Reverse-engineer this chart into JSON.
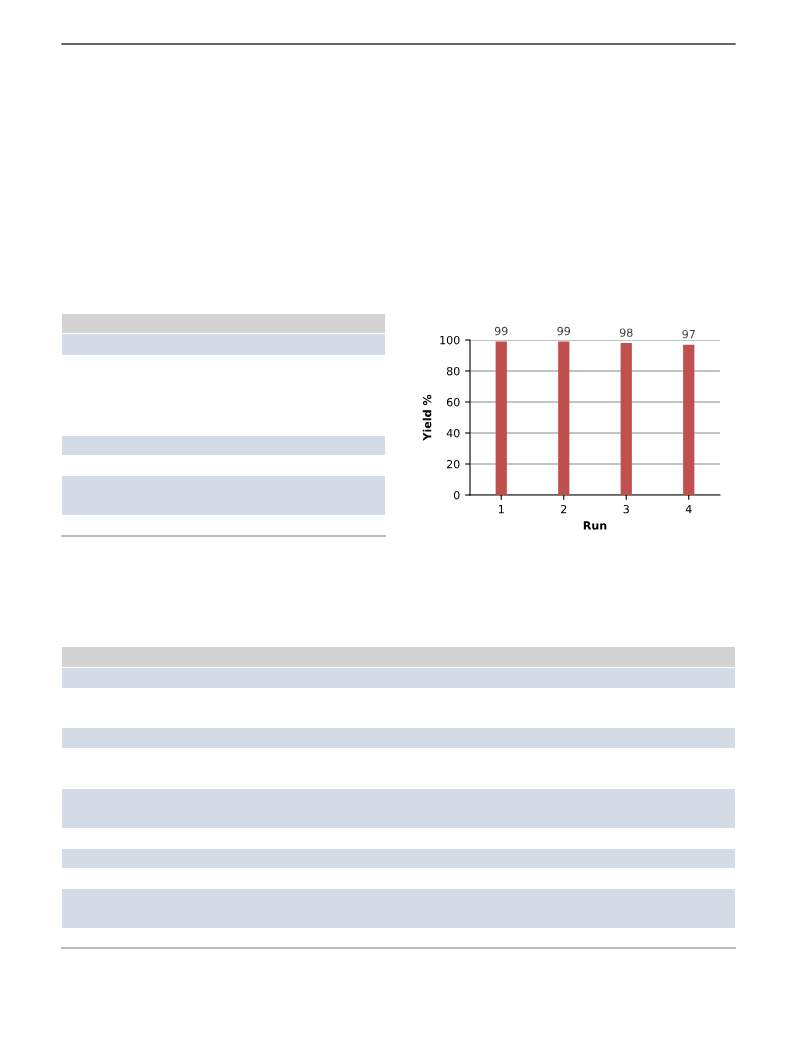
{
  "chart_data": {
    "type": "bar",
    "xlabel": "Run",
    "ylabel": "Yield %",
    "categories": [
      "1",
      "2",
      "3",
      "4"
    ],
    "values": [
      99,
      99,
      98,
      97
    ],
    "color": "#c0504d",
    "ylim": [
      0,
      100
    ],
    "yticks": [
      0,
      20,
      40,
      60,
      80,
      100
    ],
    "grid": "y",
    "data_labels": true
  }
}
